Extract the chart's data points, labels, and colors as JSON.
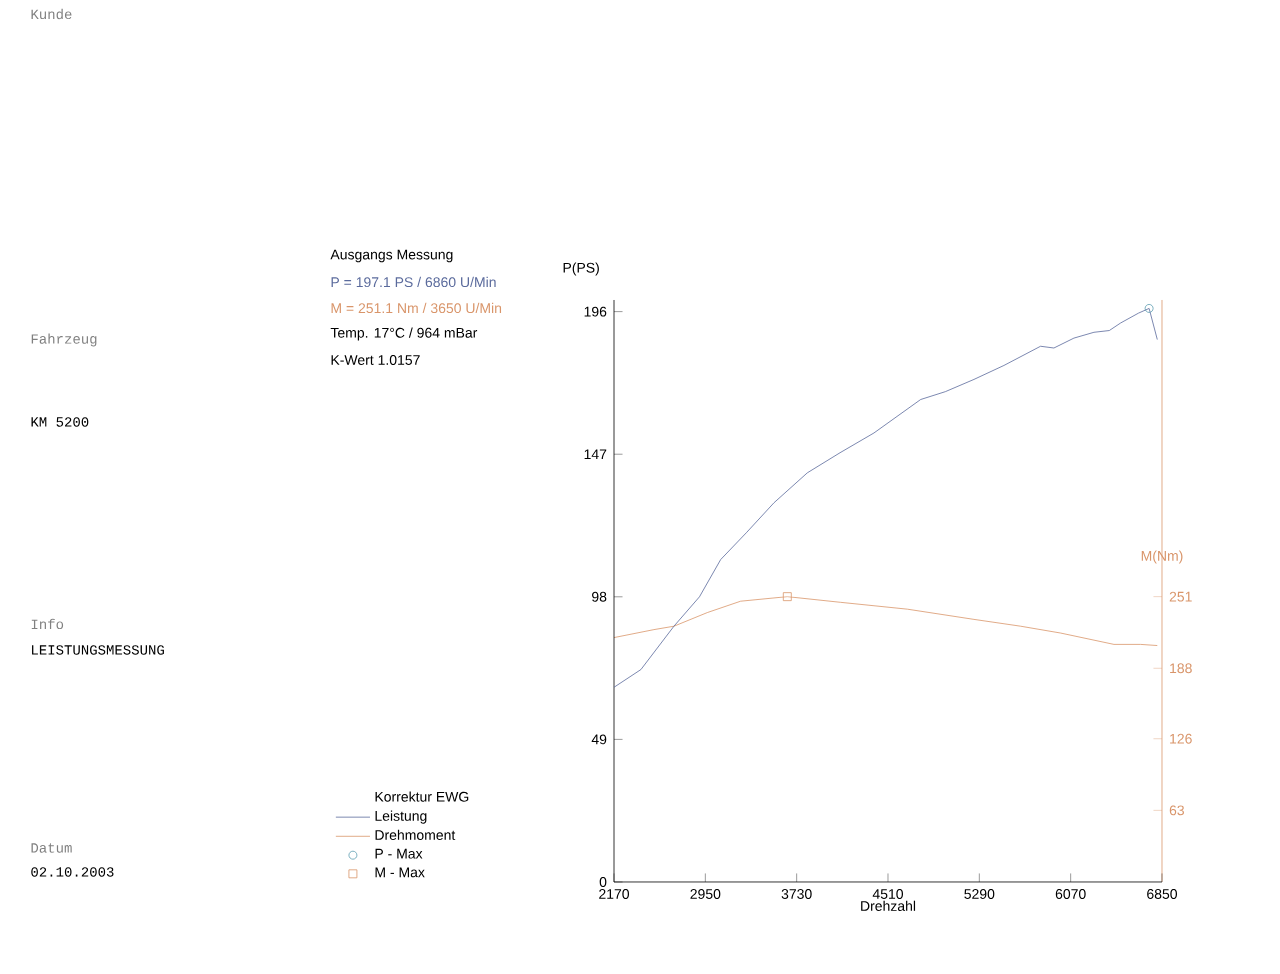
{
  "chart_data": {
    "type": "line",
    "xlabel": "Drehzahl",
    "ylabel": "P(PS)",
    "y2label": "M(Nm)",
    "legend_title": "Korrektur EWG",
    "legend": "bottom left",
    "grid": false,
    "xlim": [
      2170,
      6850
    ],
    "xticks": [
      2170,
      2950,
      3730,
      4510,
      5290,
      6070,
      6850
    ],
    "ylim": [
      0,
      200
    ],
    "yticks": [
      0,
      49,
      98,
      147,
      196
    ],
    "y2lim": [
      0,
      512
    ],
    "y2ticks": [
      63,
      126,
      188,
      251
    ],
    "annotations": [
      "Kunde",
      "Fahrzeug",
      "KM 5200",
      "Info",
      "LEISTUNGSMESSUNG",
      "Datum",
      "02.10.2003",
      "Ausgangs Messung",
      "P = 197.1 PS / 6860 U/Min",
      "M = 251.1 Nm / 3650 U/Min",
      "Temp. 17°C / 964 mBar",
      "K-Wert 1.0157"
    ],
    "series": [
      {
        "name": "Leistung",
        "marker": "none",
        "color": "#5a6a9c",
        "x": [
          2170,
          2400,
          2682,
          2900,
          3081,
          3300,
          3536,
          3821,
          4100,
          4390,
          4789,
          5000,
          5244,
          5500,
          5813,
          5927,
          6098,
          6269,
          6400,
          6497,
          6650,
          6740,
          6810
        ],
        "values": [
          66.9,
          73,
          87.9,
          98,
          110.8,
          120,
          130.3,
          140.6,
          147.5,
          154.3,
          165.8,
          168.5,
          172.7,
          177.5,
          184.1,
          183.5,
          186.9,
          188.9,
          189.5,
          192.1,
          195.5,
          197.1,
          186.4
        ]
      },
      {
        "name": "Drehmoment",
        "marker": "none",
        "axis": "y2",
        "color": "#d9956a",
        "x": [
          2170,
          2511,
          2682,
          2967,
          3251,
          3650,
          4106,
          4675,
          5244,
          5643,
          5984,
          6440,
          6667,
          6810
        ],
        "values": [
          215,
          222,
          225,
          237,
          247,
          251,
          246,
          240,
          231,
          225,
          219,
          209,
          209,
          208
        ]
      },
      {
        "name": "P - Max",
        "type": "scatter",
        "marker": "circle",
        "color": "#5a9cb0",
        "x": [
          6740
        ],
        "values": [
          197.1
        ]
      },
      {
        "name": "M - Max",
        "type": "scatter",
        "marker": "square",
        "axis": "y2",
        "color": "#d9956a",
        "x": [
          3650
        ],
        "values": [
          251
        ]
      }
    ]
  }
}
